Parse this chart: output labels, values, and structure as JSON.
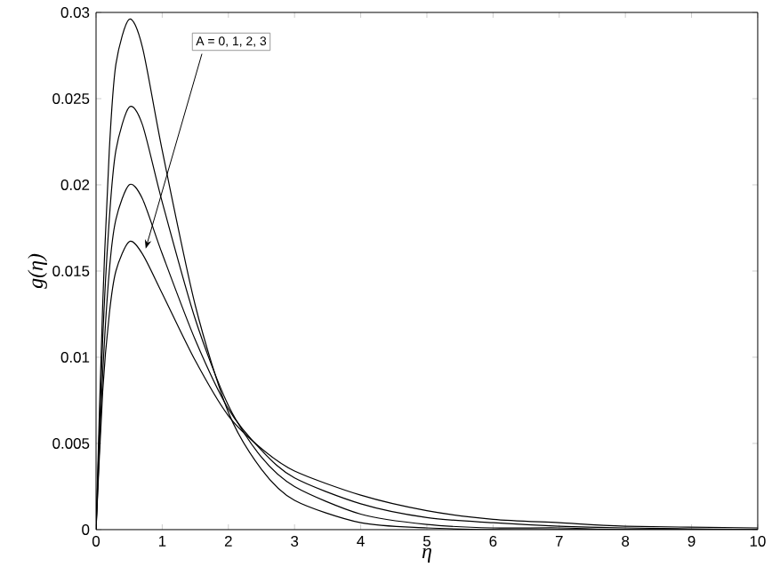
{
  "chart_data": {
    "type": "line",
    "xlabel": "η",
    "ylabel": "g(η)",
    "annotations": [
      "A = 0, 1, 2, 3"
    ],
    "x": [
      0,
      0.1,
      0.2,
      0.3,
      0.5,
      0.7,
      1,
      1.5,
      2,
      2.5,
      3,
      4,
      5,
      6,
      7,
      8,
      10
    ],
    "series": [
      {
        "color": "#000000",
        "values": [
          0,
          0.013,
          0.022,
          0.027,
          0.0296,
          0.028,
          0.022,
          0.013,
          0.0068,
          0.0035,
          0.0017,
          0.0004,
          0.0001,
          0,
          0,
          0,
          0
        ]
      },
      {
        "color": "#000000",
        "values": [
          0,
          0.011,
          0.018,
          0.022,
          0.0245,
          0.0235,
          0.019,
          0.0122,
          0.0072,
          0.0042,
          0.0025,
          0.0009,
          0.0003,
          0.0001,
          0.0001,
          0,
          0
        ]
      },
      {
        "color": "#000000",
        "values": [
          0,
          0.009,
          0.015,
          0.018,
          0.02,
          0.0192,
          0.016,
          0.011,
          0.007,
          0.0046,
          0.003,
          0.0015,
          0.0007,
          0.0004,
          0.0002,
          0.0001,
          0
        ]
      },
      {
        "color": "#000000",
        "values": [
          0,
          0.008,
          0.0125,
          0.015,
          0.0167,
          0.016,
          0.0137,
          0.0098,
          0.0066,
          0.0047,
          0.0034,
          0.002,
          0.0011,
          0.0006,
          0.0004,
          0.0002,
          0.0001
        ]
      }
    ],
    "xlim": [
      0,
      10
    ],
    "ylim": [
      0,
      0.03
    ],
    "xticks": [
      0,
      1,
      2,
      3,
      4,
      5,
      6,
      7,
      8,
      9,
      10
    ],
    "yticks": [
      0,
      0.005,
      0.01,
      0.015,
      0.02,
      0.025,
      0.03
    ],
    "grid": false,
    "marker": "none",
    "line_style": "solid"
  }
}
